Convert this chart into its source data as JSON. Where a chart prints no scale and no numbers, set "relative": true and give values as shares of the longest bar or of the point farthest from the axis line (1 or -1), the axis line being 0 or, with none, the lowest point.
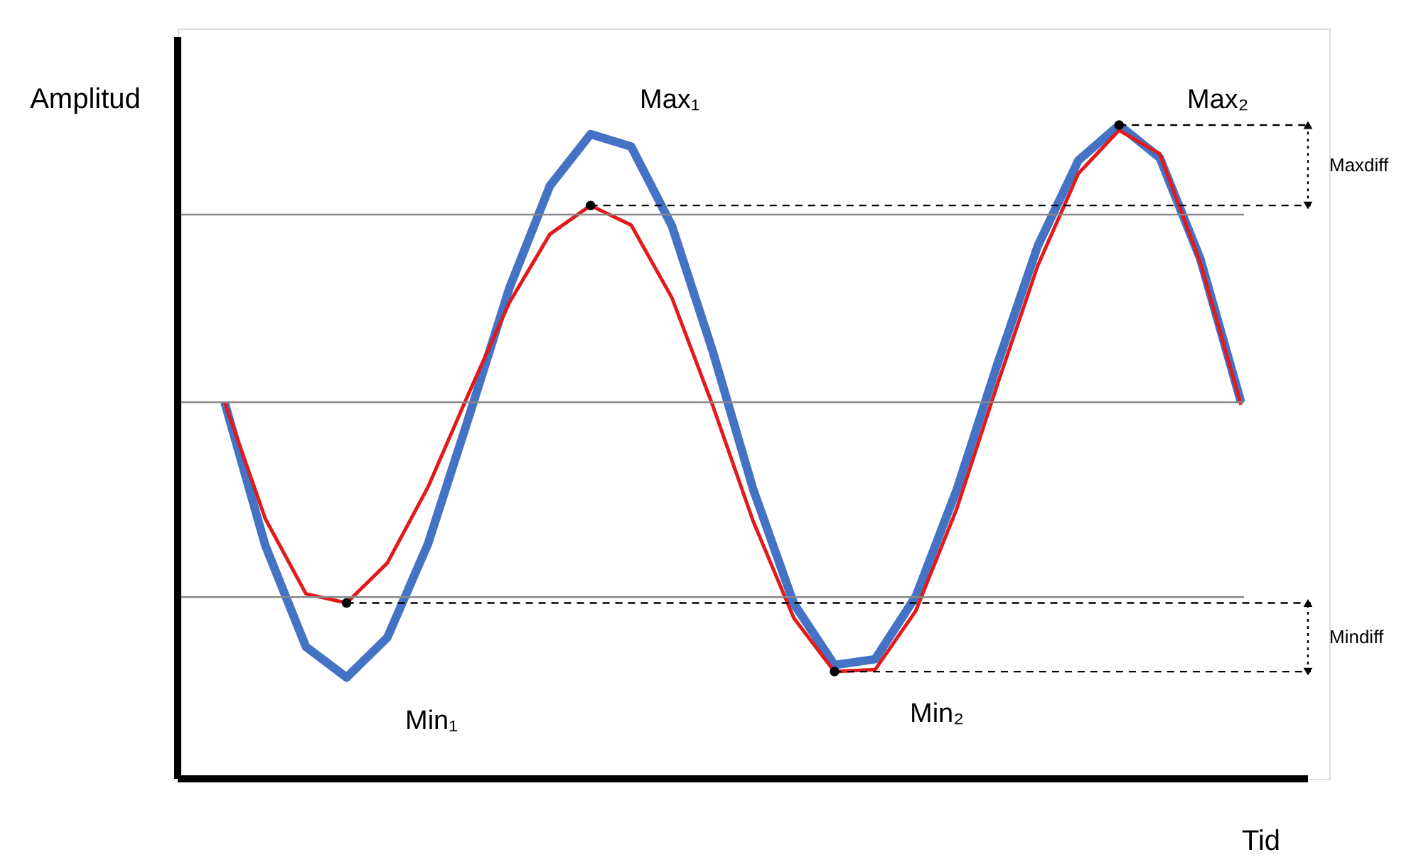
{
  "chart_data": {
    "type": "line",
    "relative": true,
    "xlabel": "Tid",
    "ylabel": "Amplitud",
    "grid": false,
    "categories": [
      null,
      null,
      null,
      null,
      null,
      null,
      null,
      null,
      null,
      null,
      null,
      null,
      null,
      null,
      null,
      null,
      null,
      null,
      null,
      null,
      null,
      null,
      null,
      null,
      null,
      null
    ],
    "series": [
      {
        "color": "#4472c4",
        "values": [
          0.576,
          0.357,
          0.202,
          0.155,
          0.216,
          0.359,
          0.552,
          0.75,
          0.907,
          0.986,
          0.967,
          0.846,
          0.655,
          0.443,
          0.268,
          0.174,
          0.183,
          0.279,
          0.441,
          0.633,
          0.815,
          0.946,
          1.0,
          0.95,
          0.795,
          0.576
        ]
      },
      {
        "color": "#e31a1c",
        "values": [
          0.576,
          0.398,
          0.283,
          0.269,
          0.33,
          0.446,
          0.589,
          0.728,
          0.833,
          0.877,
          0.847,
          0.736,
          0.572,
          0.394,
          0.246,
          0.164,
          0.167,
          0.257,
          0.412,
          0.602,
          0.785,
          0.926,
          0.992,
          0.956,
          0.789,
          0.572
        ]
      }
    ],
    "ref_lines": [
      {
        "axis": "y",
        "value": 0.863,
        "color": "#888888",
        "line_style": "solid"
      },
      {
        "axis": "y",
        "value": 0.576,
        "color": "#888888",
        "line_style": "solid"
      },
      {
        "axis": "y",
        "value": 0.278,
        "color": "#888888",
        "line_style": "solid"
      },
      {
        "axis": "y",
        "value": 0.877,
        "color": "#000000",
        "line_style": "dashed"
      },
      {
        "axis": "y",
        "value": 1.0,
        "color": "#000000",
        "line_style": "dashed"
      },
      {
        "axis": "y",
        "value": 0.269,
        "color": "#000000",
        "line_style": "dashed"
      },
      {
        "axis": "y",
        "value": 0.164,
        "color": "#000000",
        "line_style": "dashed"
      }
    ],
    "annotations": [
      "Max₁",
      "Max₂",
      "Min₁",
      "Min₂",
      "Maxdiff",
      "Mindiff"
    ]
  }
}
